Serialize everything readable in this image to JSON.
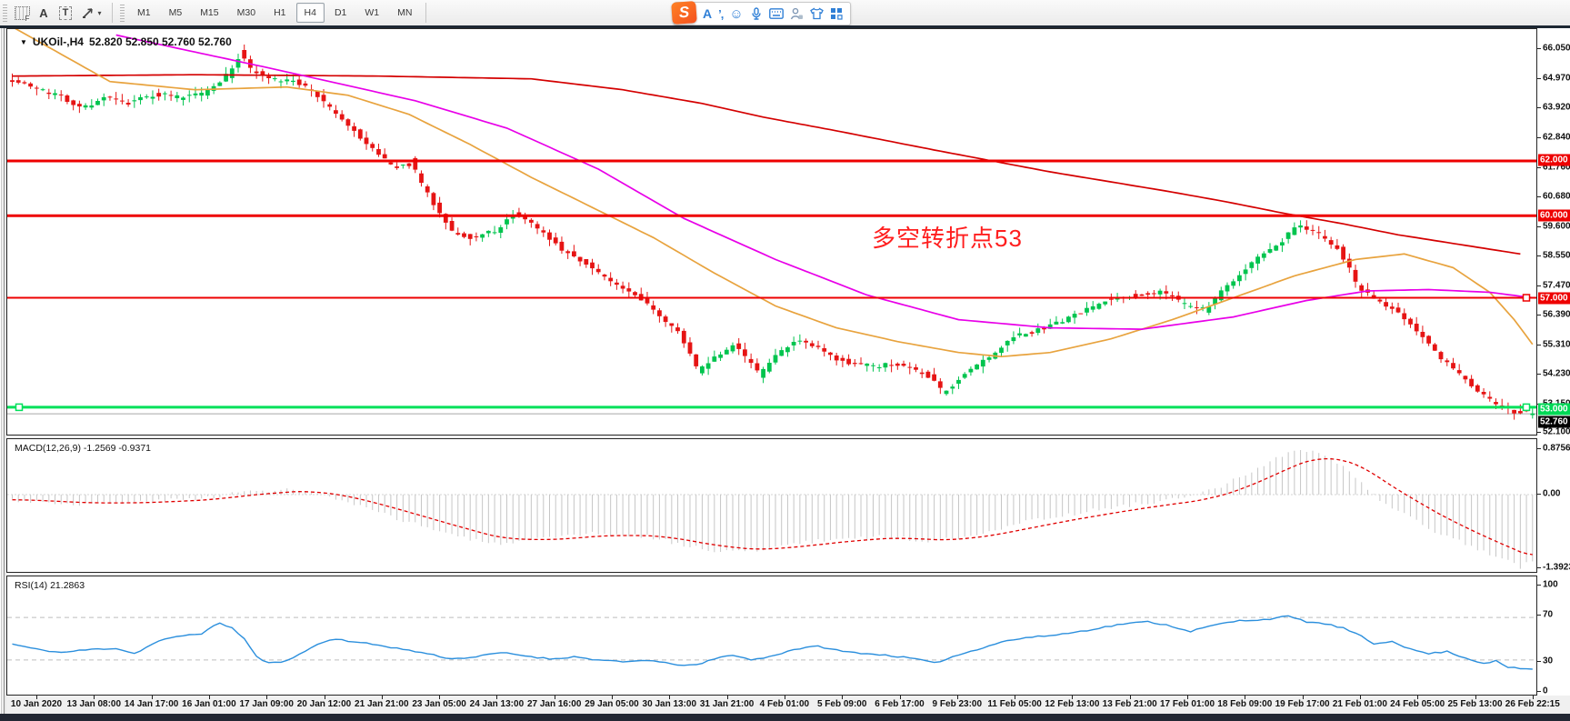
{
  "window": {
    "dropdown_arrow": "▼",
    "title_symbol": "UKOil-,H4",
    "ohlc": "52.820 52.850 52.760 52.760"
  },
  "toolbar": {
    "grid_f_label": "F",
    "a_label": "A",
    "t_label": "T",
    "shapes_caret": "▾",
    "timeframes": [
      "M1",
      "M5",
      "M15",
      "M30",
      "H1",
      "H4",
      "D1",
      "W1",
      "MN"
    ],
    "active_timeframe": "H4"
  },
  "ime": {
    "logo": "S",
    "letter": "A",
    "punct": "’,",
    "smiley": "☺"
  },
  "annotation": {
    "text": "多空转折点53",
    "color": "#ff1e1e"
  },
  "price_axis": {
    "ticks": [
      [
        "66.050",
        53
      ],
      [
        "64.970",
        86
      ],
      [
        "63.920",
        118
      ],
      [
        "62.840",
        151
      ],
      [
        "61.760",
        184
      ],
      [
        "60.680",
        216
      ],
      [
        "59.600",
        249
      ],
      [
        "58.550",
        281
      ],
      [
        "57.470",
        314
      ],
      [
        "56.390",
        346
      ],
      [
        "55.310",
        379
      ],
      [
        "54.230",
        411
      ],
      [
        "53.150",
        444
      ],
      [
        "52.100",
        475
      ]
    ],
    "badges": [
      [
        "62.000",
        176,
        "#ee0000"
      ],
      [
        "60.000",
        237,
        "#ee0000"
      ],
      [
        "57.000",
        328,
        "#ee0000"
      ],
      [
        "53.000",
        450,
        "#00d956"
      ],
      [
        "52.760",
        464,
        "#000000"
      ]
    ]
  },
  "macd_pane": {
    "label": "MACD(12,26,9) -1.2569 -0.9371",
    "ticks": [
      [
        "0.8756",
        493
      ],
      [
        "0.00",
        543
      ],
      [
        "-1.3923",
        624
      ]
    ]
  },
  "rsi_pane": {
    "label": "RSI(14) 21.2863",
    "ticks": [
      [
        "100",
        643
      ],
      [
        "70",
        676
      ],
      [
        "30",
        727
      ],
      [
        "0",
        760
      ]
    ]
  },
  "time_axis": {
    "labels": [
      "10 Jan 2020",
      "13 Jan 08:00",
      "14 Jan 17:00",
      "16 Jan 01:00",
      "17 Jan 09:00",
      "20 Jan 12:00",
      "21 Jan 21:00",
      "23 Jan 05:00",
      "24 Jan 13:00",
      "27 Jan 16:00",
      "29 Jan 05:00",
      "30 Jan 13:00",
      "31 Jan 21:00",
      "4 Feb 01:00",
      "5 Feb 09:00",
      "6 Feb 17:00",
      "9 Feb 23:00",
      "11 Feb 05:00",
      "12 Feb 13:00",
      "13 Feb 21:00",
      "17 Feb 01:00",
      "18 Feb 09:00",
      "19 Feb 17:00",
      "21 Feb 01:00",
      "24 Feb 05:00",
      "25 Feb 13:00",
      "26 Feb 22:15"
    ]
  },
  "colors": {
    "up": "#00c44e",
    "down": "#e61414",
    "ma_orange": "#e8a33e",
    "ma_magenta": "#e800e8",
    "ma_red": "#d40000",
    "level_red": "#ee0000",
    "level_green": "#00e05a",
    "bid_line": "#a8a8a8",
    "macd_hist": "#c6c6c6",
    "macd_signal": "#e00000",
    "rsi_line": "#2b8fdd",
    "rsi_level": "#bdbdbd"
  },
  "chart_data": {
    "type": "candlestick+indicators",
    "symbol": "UKOil-",
    "timeframe": "H4",
    "num_candles": 250,
    "price_range_shown": [
      52.1,
      66.05
    ],
    "horizontal_levels": [
      62.0,
      60.0,
      57.0,
      53.0
    ],
    "bid": 52.76,
    "price_path_anchors": [
      [
        0,
        65.0
      ],
      [
        5,
        64.6
      ],
      [
        9,
        64.3
      ],
      [
        12,
        63.95
      ],
      [
        16,
        64.3
      ],
      [
        19,
        64.1
      ],
      [
        24,
        64.45
      ],
      [
        28,
        64.3
      ],
      [
        32,
        64.5
      ],
      [
        36,
        65.2
      ],
      [
        38,
        65.9
      ],
      [
        40,
        65.3
      ],
      [
        44,
        64.9
      ],
      [
        47,
        64.9
      ],
      [
        50,
        64.5
      ],
      [
        53,
        63.8
      ],
      [
        57,
        63.0
      ],
      [
        60,
        62.3
      ],
      [
        63,
        61.75
      ],
      [
        66,
        61.9
      ],
      [
        68,
        61.0
      ],
      [
        70,
        60.3
      ],
      [
        73,
        59.35
      ],
      [
        76,
        59.2
      ],
      [
        80,
        59.5
      ],
      [
        83,
        60.1
      ],
      [
        85,
        59.8
      ],
      [
        88,
        59.3
      ],
      [
        91,
        58.7
      ],
      [
        95,
        58.2
      ],
      [
        99,
        57.5
      ],
      [
        104,
        56.9
      ],
      [
        107,
        56.3
      ],
      [
        110,
        55.6
      ],
      [
        113,
        54.35
      ],
      [
        116,
        54.9
      ],
      [
        119,
        55.3
      ],
      [
        121,
        54.7
      ],
      [
        123,
        54.2
      ],
      [
        126,
        55.0
      ],
      [
        129,
        55.4
      ],
      [
        132,
        55.2
      ],
      [
        135,
        54.8
      ],
      [
        138,
        54.6
      ],
      [
        142,
        54.5
      ],
      [
        146,
        54.6
      ],
      [
        151,
        54.1
      ],
      [
        153,
        53.5
      ],
      [
        156,
        54.1
      ],
      [
        161,
        54.9
      ],
      [
        165,
        55.6
      ],
      [
        170,
        55.9
      ],
      [
        174,
        56.3
      ],
      [
        180,
        56.9
      ],
      [
        184,
        57.1
      ],
      [
        189,
        57.2
      ],
      [
        193,
        56.7
      ],
      [
        196,
        56.6
      ],
      [
        199,
        57.3
      ],
      [
        203,
        58.2
      ],
      [
        208,
        59.0
      ],
      [
        211,
        59.6
      ],
      [
        214,
        59.4
      ],
      [
        218,
        58.7
      ],
      [
        221,
        57.4
      ],
      [
        224,
        56.9
      ],
      [
        227,
        56.6
      ],
      [
        231,
        55.7
      ],
      [
        234,
        54.9
      ],
      [
        237,
        54.3
      ],
      [
        240,
        53.7
      ],
      [
        243,
        53.2
      ],
      [
        246,
        52.85
      ],
      [
        249,
        52.78
      ]
    ],
    "ma_orange_anchors": [
      [
        0,
        66.9
      ],
      [
        8,
        65.9
      ],
      [
        16,
        64.9
      ],
      [
        30,
        64.6
      ],
      [
        45,
        64.7
      ],
      [
        55,
        64.4
      ],
      [
        65,
        63.7
      ],
      [
        75,
        62.6
      ],
      [
        85,
        61.4
      ],
      [
        95,
        60.3
      ],
      [
        105,
        59.2
      ],
      [
        115,
        57.9
      ],
      [
        125,
        56.7
      ],
      [
        135,
        55.9
      ],
      [
        145,
        55.4
      ],
      [
        155,
        55.0
      ],
      [
        162,
        54.85
      ],
      [
        170,
        55.0
      ],
      [
        180,
        55.5
      ],
      [
        190,
        56.2
      ],
      [
        200,
        57.0
      ],
      [
        210,
        57.8
      ],
      [
        220,
        58.4
      ],
      [
        228,
        58.6
      ],
      [
        236,
        58.1
      ],
      [
        242,
        57.2
      ],
      [
        246,
        56.2
      ],
      [
        249,
        55.3
      ]
    ],
    "ma_magenta_anchors": [
      [
        17,
        66.6
      ],
      [
        42,
        65.4
      ],
      [
        66,
        64.2
      ],
      [
        81,
        63.2
      ],
      [
        96,
        61.7
      ],
      [
        110,
        59.9
      ],
      [
        125,
        58.4
      ],
      [
        140,
        57.1
      ],
      [
        155,
        56.2
      ],
      [
        170,
        55.9
      ],
      [
        185,
        55.85
      ],
      [
        200,
        56.3
      ],
      [
        212,
        56.9
      ],
      [
        222,
        57.25
      ],
      [
        232,
        57.3
      ],
      [
        242,
        57.2
      ],
      [
        249,
        57.0
      ]
    ],
    "ma_red_anchors": [
      [
        0,
        65.1
      ],
      [
        30,
        65.15
      ],
      [
        60,
        65.1
      ],
      [
        85,
        65.0
      ],
      [
        100,
        64.6
      ],
      [
        113,
        64.1
      ],
      [
        123,
        63.6
      ],
      [
        135,
        63.1
      ],
      [
        151,
        62.4
      ],
      [
        170,
        61.6
      ],
      [
        189,
        60.9
      ],
      [
        199,
        60.5
      ],
      [
        208,
        60.1
      ],
      [
        218,
        59.7
      ],
      [
        227,
        59.3
      ],
      [
        237,
        58.95
      ],
      [
        247,
        58.6
      ]
    ],
    "macd": {
      "current_main": -1.2569,
      "current_signal": -0.9371,
      "scale_max": 0.8756,
      "scale_min": -1.3923,
      "main_anchors": [
        [
          0,
          -0.1
        ],
        [
          10,
          -0.18
        ],
        [
          20,
          -0.15
        ],
        [
          30,
          -0.08
        ],
        [
          38,
          0.05
        ],
        [
          46,
          0.1
        ],
        [
          52,
          -0.05
        ],
        [
          60,
          -0.35
        ],
        [
          70,
          -0.7
        ],
        [
          78,
          -0.95
        ],
        [
          88,
          -0.85
        ],
        [
          95,
          -0.75
        ],
        [
          104,
          -0.8
        ],
        [
          113,
          -1.05
        ],
        [
          120,
          -1.1
        ],
        [
          128,
          -0.95
        ],
        [
          135,
          -0.85
        ],
        [
          142,
          -0.8
        ],
        [
          151,
          -0.9
        ],
        [
          158,
          -0.75
        ],
        [
          165,
          -0.55
        ],
        [
          172,
          -0.4
        ],
        [
          180,
          -0.25
        ],
        [
          188,
          -0.12
        ],
        [
          193,
          -0.05
        ],
        [
          198,
          0.15
        ],
        [
          203,
          0.45
        ],
        [
          208,
          0.75
        ],
        [
          211,
          0.87
        ],
        [
          215,
          0.75
        ],
        [
          219,
          0.45
        ],
        [
          222,
          0.1
        ],
        [
          225,
          -0.2
        ],
        [
          229,
          -0.45
        ],
        [
          233,
          -0.7
        ],
        [
          237,
          -0.9
        ],
        [
          241,
          -1.1
        ],
        [
          245,
          -1.28
        ],
        [
          247,
          -1.39
        ],
        [
          249,
          -1.26
        ]
      ]
    },
    "rsi": {
      "current": 21.2863,
      "levels": [
        70,
        30
      ],
      "anchors": [
        [
          0,
          45
        ],
        [
          4,
          40
        ],
        [
          8,
          37
        ],
        [
          13,
          40
        ],
        [
          17,
          41
        ],
        [
          20,
          36
        ],
        [
          24,
          48
        ],
        [
          28,
          53
        ],
        [
          31,
          55
        ],
        [
          34,
          65
        ],
        [
          36,
          60
        ],
        [
          38,
          50
        ],
        [
          40,
          33
        ],
        [
          42,
          27
        ],
        [
          44,
          28
        ],
        [
          47,
          35
        ],
        [
          50,
          45
        ],
        [
          53,
          50
        ],
        [
          56,
          47
        ],
        [
          60,
          44
        ],
        [
          64,
          40
        ],
        [
          68,
          36
        ],
        [
          72,
          31
        ],
        [
          76,
          33
        ],
        [
          80,
          37
        ],
        [
          84,
          34
        ],
        [
          88,
          31
        ],
        [
          92,
          33
        ],
        [
          96,
          30
        ],
        [
          100,
          28
        ],
        [
          104,
          30
        ],
        [
          108,
          26
        ],
        [
          112,
          25
        ],
        [
          115,
          31
        ],
        [
          118,
          35
        ],
        [
          121,
          30
        ],
        [
          124,
          33
        ],
        [
          128,
          40
        ],
        [
          132,
          43
        ],
        [
          136,
          38
        ],
        [
          140,
          36
        ],
        [
          144,
          34
        ],
        [
          148,
          31
        ],
        [
          151,
          27
        ],
        [
          154,
          33
        ],
        [
          158,
          40
        ],
        [
          162,
          47
        ],
        [
          166,
          51
        ],
        [
          170,
          53
        ],
        [
          174,
          56
        ],
        [
          178,
          60
        ],
        [
          182,
          64
        ],
        [
          186,
          66
        ],
        [
          189,
          63
        ],
        [
          193,
          57
        ],
        [
          197,
          63
        ],
        [
          201,
          67
        ],
        [
          205,
          68
        ],
        [
          209,
          71
        ],
        [
          212,
          66
        ],
        [
          215,
          64
        ],
        [
          218,
          60
        ],
        [
          221,
          52
        ],
        [
          223,
          45
        ],
        [
          226,
          48
        ],
        [
          229,
          40
        ],
        [
          232,
          36
        ],
        [
          235,
          38
        ],
        [
          237,
          34
        ],
        [
          239,
          30
        ],
        [
          241,
          27
        ],
        [
          243,
          29
        ],
        [
          245,
          23
        ],
        [
          247,
          22
        ],
        [
          249,
          21.3
        ]
      ]
    }
  }
}
